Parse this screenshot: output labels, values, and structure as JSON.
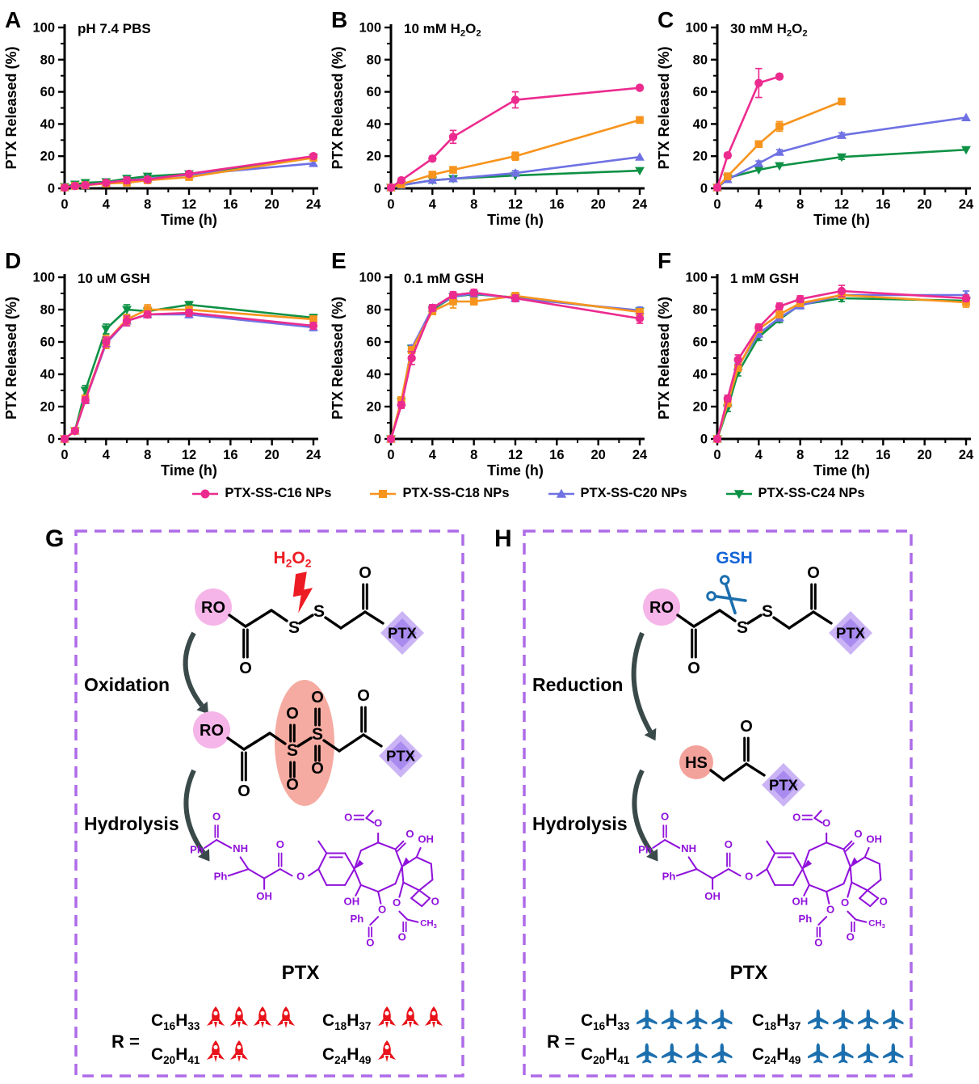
{
  "colors": {
    "c16": "#EC2B8F",
    "c18": "#F7941D",
    "c20": "#6F71E3",
    "c24": "#0E9145",
    "axis": "#000000",
    "box_border": "#AE6BE8",
    "chem": "#9012DB",
    "trigger_red": "#ED1C24",
    "trigger_blue": "#1464D8",
    "ro_fill": "#F5B5E8",
    "hs_fill": "#F3A29B",
    "sulfone_fill": "#F5ABA1",
    "ptx_outer": "#CBB4F5",
    "ptx_inner": "#A98BEF",
    "arrow": "#3A4949",
    "rocket": "#E8131B",
    "plane": "#1C6FAE"
  },
  "axis": {
    "x_label": "Time (h)",
    "y_label": "PTX Released (%)",
    "x_ticks": [
      0,
      4,
      8,
      12,
      16,
      20,
      24
    ],
    "x_minor": [
      2,
      6,
      10,
      14,
      18,
      22
    ],
    "y_ticks": [
      0,
      20,
      40,
      60,
      80,
      100
    ],
    "xlim": [
      0,
      24
    ],
    "ylim": [
      0,
      100
    ]
  },
  "legend": [
    {
      "key": "c16",
      "label": "PTX-SS-C16 NPs",
      "marker": "circle"
    },
    {
      "key": "c18",
      "label": "PTX-SS-C18 NPs",
      "marker": "square"
    },
    {
      "key": "c20",
      "label": "PTX-SS-C20 NPs",
      "marker": "triangle-up"
    },
    {
      "key": "c24",
      "label": "PTX-SS-C24 NPs",
      "marker": "triangle-down"
    }
  ],
  "chart_data": [
    {
      "letter": "A",
      "type": "line",
      "title_parts": [
        {
          "t": "pH 7.4 PBS"
        }
      ],
      "series": [
        {
          "key": "c16",
          "x": [
            0,
            1,
            2,
            4,
            6,
            8,
            12,
            24
          ],
          "y": [
            0.5,
            1.5,
            2,
            3.5,
            5,
            5.5,
            9,
            20
          ],
          "err": [
            0,
            0,
            0,
            1,
            2,
            1.5,
            1.5,
            1.5
          ]
        },
        {
          "key": "c18",
          "x": [
            0,
            1,
            2,
            4,
            6,
            8,
            12,
            24
          ],
          "y": [
            0.5,
            1.5,
            2,
            3,
            3.5,
            5,
            7,
            19
          ],
          "err": [
            0,
            0,
            0,
            1,
            1,
            1,
            1,
            1
          ]
        },
        {
          "key": "c20",
          "x": [
            0,
            1,
            2,
            4,
            6,
            8,
            12,
            24
          ],
          "y": [
            0.5,
            1.5,
            2,
            3.5,
            5,
            6,
            8.5,
            15.5
          ],
          "err": [
            0,
            0,
            0,
            1,
            1,
            1,
            1,
            1
          ]
        },
        {
          "key": "c24",
          "x": [
            0,
            1,
            2,
            4,
            6,
            8,
            12,
            24
          ],
          "y": [
            1,
            2.5,
            3.5,
            4,
            6,
            7.5,
            9,
            19
          ],
          "err": [
            0,
            1,
            1,
            1,
            2,
            1.5,
            1,
            1
          ]
        }
      ]
    },
    {
      "letter": "B",
      "type": "line",
      "title_parts": [
        {
          "t": "10 mM H"
        },
        {
          "t": "2",
          "sub": true
        },
        {
          "t": "O"
        },
        {
          "t": "2",
          "sub": true
        }
      ],
      "series": [
        {
          "key": "c16",
          "x": [
            0,
            1,
            4,
            6,
            12,
            24
          ],
          "y": [
            0.5,
            5,
            18.5,
            32,
            55,
            62.5
          ],
          "err": [
            0,
            1,
            1.5,
            4,
            5,
            1.5
          ]
        },
        {
          "key": "c18",
          "x": [
            0,
            1,
            4,
            6,
            12,
            24
          ],
          "y": [
            0.5,
            2.5,
            8.5,
            11.5,
            20,
            42.5
          ],
          "err": [
            0,
            0,
            1,
            1.5,
            2.5,
            1.5
          ]
        },
        {
          "key": "c20",
          "x": [
            0,
            1,
            4,
            6,
            12,
            24
          ],
          "y": [
            0.5,
            2,
            5,
            6,
            9.5,
            19.5
          ],
          "err": [
            0,
            0,
            1,
            1,
            1.5,
            1
          ]
        },
        {
          "key": "c24",
          "x": [
            0,
            1,
            4,
            6,
            12,
            24
          ],
          "y": [
            0.5,
            2,
            5,
            6,
            8,
            11
          ],
          "err": [
            0,
            0,
            1,
            1,
            1,
            1
          ]
        }
      ]
    },
    {
      "letter": "C",
      "type": "line",
      "title_parts": [
        {
          "t": "30 mM H"
        },
        {
          "t": "2",
          "sub": true
        },
        {
          "t": "O"
        },
        {
          "t": "2",
          "sub": true
        }
      ],
      "series": [
        {
          "key": "c16",
          "x": [
            0,
            1,
            4,
            6
          ],
          "y": [
            0.5,
            20.5,
            65.5,
            69.5
          ],
          "err": [
            0,
            1.5,
            9,
            1.5
          ]
        },
        {
          "key": "c18",
          "x": [
            0,
            1,
            4,
            6,
            12
          ],
          "y": [
            0.5,
            7.5,
            27.5,
            38.5,
            54
          ],
          "err": [
            0,
            1,
            1.5,
            3,
            1
          ]
        },
        {
          "key": "c20",
          "x": [
            0,
            1,
            4,
            6,
            12,
            24
          ],
          "y": [
            0.5,
            5.5,
            15.5,
            22.5,
            33,
            44
          ],
          "err": [
            0,
            1,
            1.5,
            1.5,
            1.5,
            1
          ]
        },
        {
          "key": "c24",
          "x": [
            0,
            1,
            4,
            6,
            12,
            24
          ],
          "y": [
            0.5,
            6.5,
            11.5,
            14,
            19.5,
            24
          ],
          "err": [
            0,
            1,
            1,
            1,
            1.5,
            1
          ]
        }
      ]
    },
    {
      "letter": "D",
      "type": "line",
      "title_parts": [
        {
          "t": "10 uM GSH"
        }
      ],
      "series": [
        {
          "key": "c16",
          "x": [
            0,
            1,
            2,
            4,
            6,
            8,
            12,
            24
          ],
          "y": [
            0,
            5,
            24,
            60,
            73,
            77,
            78,
            70
          ],
          "err": [
            0,
            1,
            2,
            3,
            3,
            2,
            2,
            2
          ]
        },
        {
          "key": "c18",
          "x": [
            0,
            1,
            2,
            4,
            6,
            8,
            12,
            24
          ],
          "y": [
            0,
            5,
            25,
            60,
            74,
            80,
            80,
            74
          ],
          "err": [
            0,
            1,
            2,
            4,
            3,
            3,
            2,
            2
          ]
        },
        {
          "key": "c20",
          "x": [
            0,
            1,
            2,
            4,
            6,
            8,
            12,
            24
          ],
          "y": [
            0,
            5,
            24,
            59,
            73,
            77,
            77,
            69
          ],
          "err": [
            0,
            1,
            2,
            3,
            3,
            2,
            2,
            2
          ]
        },
        {
          "key": "c24",
          "x": [
            0,
            1,
            2,
            4,
            6,
            8,
            12,
            24
          ],
          "y": [
            0,
            5,
            30,
            68,
            80,
            79,
            83,
            75
          ],
          "err": [
            0,
            1,
            3,
            3,
            3,
            2,
            2,
            2
          ]
        }
      ]
    },
    {
      "letter": "E",
      "type": "line",
      "title_parts": [
        {
          "t": "0.1 mM GSH"
        }
      ],
      "series": [
        {
          "key": "c16",
          "x": [
            0,
            1,
            2,
            4,
            6,
            8,
            12,
            24
          ],
          "y": [
            0,
            21,
            50,
            81,
            89,
            90.5,
            87,
            74.5
          ],
          "err": [
            0,
            2,
            4,
            2,
            2,
            2,
            2,
            3
          ]
        },
        {
          "key": "c18",
          "x": [
            0,
            1,
            2,
            4,
            6,
            8,
            12,
            24
          ],
          "y": [
            0,
            24,
            55,
            79,
            85,
            85,
            88.5,
            78.5
          ],
          "err": [
            0,
            2,
            2,
            2,
            4,
            2,
            2,
            2
          ]
        },
        {
          "key": "c20",
          "x": [
            0,
            1,
            2,
            4,
            6,
            8,
            12,
            24
          ],
          "y": [
            0,
            23,
            56,
            81,
            88,
            90,
            87,
            79.5
          ],
          "err": [
            0,
            2,
            2,
            2,
            2,
            2,
            2,
            2
          ]
        },
        {
          "key": "c24",
          "x": [
            0,
            1,
            2,
            4,
            6,
            8,
            12,
            24
          ],
          "y": [
            0,
            23,
            56,
            80,
            88,
            89.5,
            87.5,
            79
          ],
          "err": [
            0,
            2,
            2,
            2,
            2,
            2,
            2,
            2
          ]
        }
      ]
    },
    {
      "letter": "F",
      "type": "line",
      "title_parts": [
        {
          "t": "1 mM GSH"
        }
      ],
      "series": [
        {
          "key": "c16",
          "x": [
            0,
            1,
            2,
            4,
            6,
            8,
            12,
            24
          ],
          "y": [
            0,
            25,
            49,
            69,
            82,
            86.5,
            91.5,
            87
          ],
          "err": [
            0,
            2,
            3,
            2,
            2,
            2,
            3.5,
            2
          ]
        },
        {
          "key": "c18",
          "x": [
            0,
            1,
            2,
            4,
            6,
            8,
            12,
            24
          ],
          "y": [
            0,
            22,
            44,
            68,
            77,
            84,
            89,
            84.5
          ],
          "err": [
            0,
            2,
            2,
            2,
            2,
            2,
            2,
            3
          ]
        },
        {
          "key": "c20",
          "x": [
            0,
            1,
            2,
            4,
            6,
            8,
            12,
            24
          ],
          "y": [
            0,
            22,
            45,
            65,
            75,
            82.5,
            89,
            89
          ],
          "err": [
            0,
            2,
            2,
            2,
            2,
            2,
            2,
            2.5
          ]
        },
        {
          "key": "c24",
          "x": [
            0,
            1,
            2,
            4,
            6,
            8,
            12,
            24
          ],
          "y": [
            0,
            19,
            41,
            63,
            74,
            83,
            87,
            85.5
          ],
          "err": [
            0,
            2,
            2,
            2,
            2,
            2,
            2,
            2
          ]
        }
      ]
    }
  ],
  "schemes": [
    {
      "letter": "G",
      "trigger_parts": [
        {
          "t": "H"
        },
        {
          "t": "2",
          "sub": true
        },
        {
          "t": "O"
        },
        {
          "t": "2",
          "sub": true
        }
      ],
      "trigger_color_key": "trigger_red",
      "trigger_icon": "lightning-icon",
      "step1": "Oxidation",
      "step2": "Hydrolysis",
      "mid": "sulfone",
      "ptx_name": "PTX",
      "r_prefix": "R =",
      "icon": "rocket-icon",
      "r_groups": [
        {
          "c": "16",
          "h": "33",
          "count": 4
        },
        {
          "c": "18",
          "h": "37",
          "count": 3
        },
        {
          "c": "20",
          "h": "41",
          "count": 2
        },
        {
          "c": "24",
          "h": "49",
          "count": 1
        }
      ]
    },
    {
      "letter": "H",
      "trigger_parts": [
        {
          "t": "GSH"
        }
      ],
      "trigger_color_key": "trigger_blue",
      "trigger_icon": "scissors-icon",
      "step1": "Reduction",
      "step2": "Hydrolysis",
      "mid": "thiol",
      "ptx_name": "PTX",
      "r_prefix": "R =",
      "icon": "plane-icon",
      "r_groups": [
        {
          "c": "16",
          "h": "33",
          "count": 4
        },
        {
          "c": "18",
          "h": "37",
          "count": 4
        },
        {
          "c": "20",
          "h": "41",
          "count": 4
        },
        {
          "c": "24",
          "h": "49",
          "count": 4
        }
      ]
    }
  ],
  "molecule_labels": {
    "ro": "RO",
    "s": "S",
    "o": "O",
    "ptx": "PTX",
    "hs": "HS"
  },
  "ptx_labels": {
    "ph": "Ph",
    "nh": "NH",
    "o": "O",
    "oh": "OH",
    "ch": "CH",
    "three": "3"
  }
}
